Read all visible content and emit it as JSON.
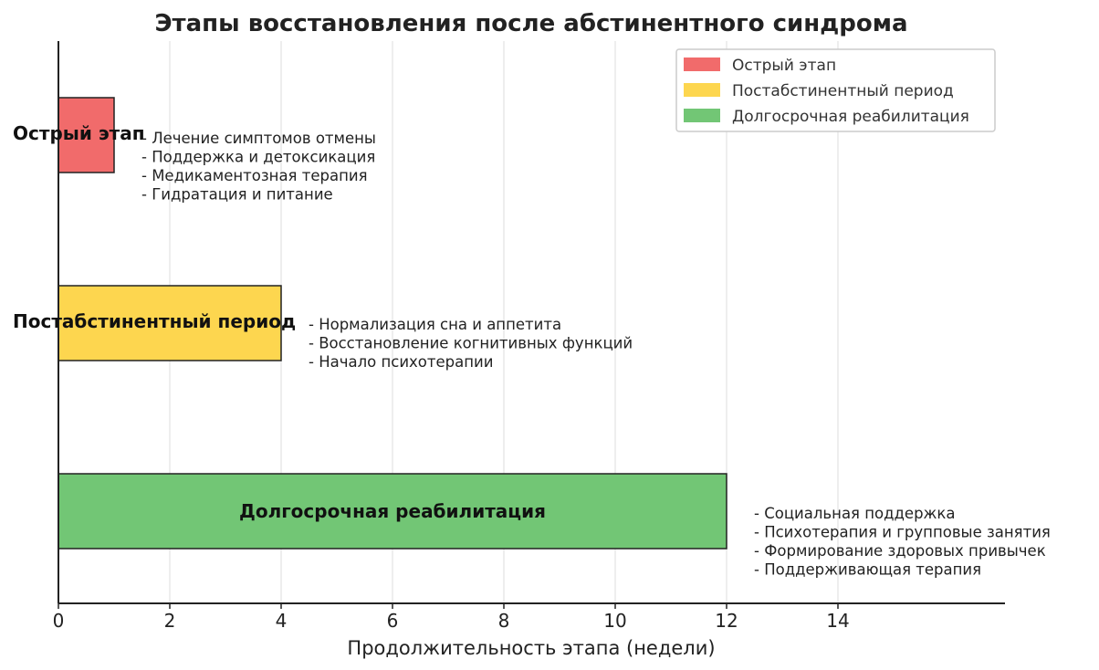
{
  "chart_data": {
    "type": "bar",
    "orientation": "horizontal",
    "title": "Этапы восстановления после абстинентного синдрома",
    "xlabel": "Продолжительность этапа (недели)",
    "ylabel": "",
    "xlim": [
      0,
      17
    ],
    "xticks": [
      0,
      2,
      4,
      6,
      8,
      10,
      12,
      14
    ],
    "grid": "vertical",
    "legend_position": "top-right",
    "categories": [
      "Острый этап",
      "Постабстинентный период",
      "Долгосрочная реабилитация"
    ],
    "values": [
      1,
      4,
      12
    ],
    "colors": [
      "#f16b6b",
      "#fdd64f",
      "#72c675"
    ],
    "legend": [
      "Острый этап",
      "Постабстинентный период",
      "Долгосрочная реабилитация"
    ],
    "annotations": [
      [
        "- Лечение симптомов отмены",
        "- Поддержка и детоксикация",
        "- Медикаментозная терапия",
        "- Гидратация и питание"
      ],
      [
        "- Нормализация сна и аппетита",
        "- Восстановление когнитивных функций",
        "- Начало психотерапии"
      ],
      [
        "- Социальная поддержка",
        "- Психотерапия и групповые занятия",
        "- Формирование здоровых привычек",
        "- Поддерживающая терапия"
      ]
    ]
  }
}
